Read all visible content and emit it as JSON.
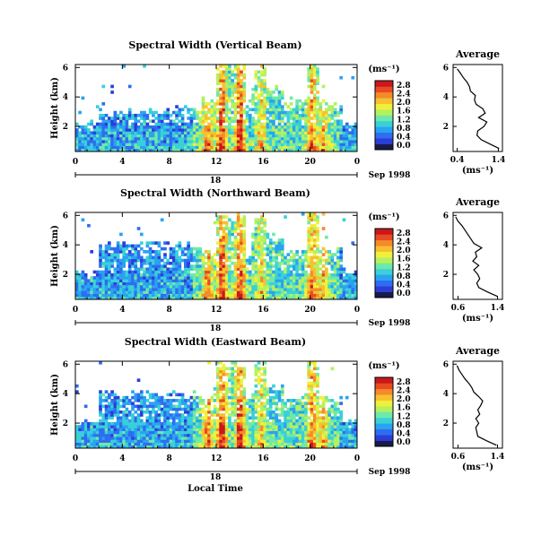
{
  "figure": {
    "x_axis_label": "Local Time",
    "date_label": "Sep 1998",
    "average_title": "Average",
    "colorbar_units": "(ms⁻¹)",
    "average_xlabel": "(ms⁻¹)",
    "height_label": "Height (km)"
  },
  "chart_data": [
    {
      "type": "heatmap",
      "title": "Spectral Width (Vertical Beam)",
      "xlabel": "Local Time",
      "ylabel": "Height (km)",
      "x_ticks": [
        "0",
        "4",
        "8",
        "12",
        "16",
        "20",
        "0"
      ],
      "x_sublabel": "18",
      "date_label": "Sep 1998",
      "xlim_hours": [
        0,
        24
      ],
      "ylim_km": [
        0.3,
        6.2
      ],
      "y_ticks": [
        "2",
        "4",
        "6"
      ],
      "colorbar": {
        "units": "(ms⁻¹)",
        "ticks": [
          "0.0",
          "0.4",
          "0.8",
          "1.2",
          "1.6",
          "2.0",
          "2.4",
          "2.8"
        ],
        "range": [
          0,
          3.0
        ]
      },
      "colormap": [
        "#1a1a4a",
        "#2b3dd9",
        "#2f6df0",
        "#2aa3f0",
        "#39d0d8",
        "#6fe9a8",
        "#b5f060",
        "#f0f03a",
        "#f7c030",
        "#f58a2a",
        "#e84a22",
        "#c8181c"
      ],
      "average_profile": {
        "title": "Average",
        "xlabel": "(ms⁻¹)",
        "x_ticks": [
          "0.4",
          "1.4"
        ],
        "xlim": [
          0.3,
          1.5
        ],
        "y_ticks": [
          "2",
          "4",
          "6"
        ],
        "height_km": [
          0.5,
          0.8,
          1.1,
          1.4,
          1.7,
          2.0,
          2.3,
          2.6,
          2.9,
          3.2,
          3.5,
          3.8,
          4.1,
          4.4,
          4.7,
          5.0,
          5.3,
          5.6,
          5.9
        ],
        "width_ms": [
          1.42,
          1.2,
          0.98,
          0.88,
          0.9,
          1.05,
          1.12,
          0.92,
          1.08,
          1.02,
          0.86,
          0.82,
          0.84,
          0.72,
          0.7,
          0.64,
          0.55,
          0.48,
          0.4
        ]
      }
    },
    {
      "type": "heatmap",
      "title": "Spectral Width (Northward Beam)",
      "xlabel": "Local Time",
      "ylabel": "Height (km)",
      "x_ticks": [
        "0",
        "4",
        "8",
        "12",
        "16",
        "20",
        "0"
      ],
      "x_sublabel": "18",
      "date_label": "Sep 1998",
      "xlim_hours": [
        0,
        24
      ],
      "ylim_km": [
        0.3,
        6.2
      ],
      "y_ticks": [
        "2",
        "4",
        "6"
      ],
      "colorbar": {
        "units": "(ms⁻¹)",
        "ticks": [
          "0.0",
          "0.4",
          "0.8",
          "1.2",
          "1.6",
          "2.0",
          "2.4",
          "2.8"
        ],
        "range": [
          0,
          3.0
        ]
      },
      "colormap": [
        "#1a1a4a",
        "#2b3dd9",
        "#2f6df0",
        "#2aa3f0",
        "#39d0d8",
        "#6fe9a8",
        "#b5f060",
        "#f0f03a",
        "#f7c030",
        "#f58a2a",
        "#e84a22",
        "#c8181c"
      ],
      "average_profile": {
        "title": "Average",
        "xlabel": "(ms⁻¹)",
        "x_ticks": [
          "0.6",
          "1.4"
        ],
        "xlim": [
          0.5,
          1.5
        ],
        "y_ticks": [
          "2",
          "4",
          "6"
        ],
        "height_km": [
          0.5,
          0.8,
          1.1,
          1.4,
          1.7,
          2.0,
          2.3,
          2.6,
          2.9,
          3.2,
          3.5,
          3.8,
          4.1,
          4.4,
          4.7,
          5.0,
          5.3,
          5.6,
          5.9
        ],
        "width_ms": [
          1.4,
          1.2,
          1.02,
          0.98,
          1.04,
          1.0,
          0.92,
          1.02,
          0.9,
          0.98,
          0.95,
          1.08,
          0.92,
          0.86,
          0.8,
          0.74,
          0.68,
          0.6,
          0.55
        ]
      }
    },
    {
      "type": "heatmap",
      "title": "Spectral Width (Eastward Beam)",
      "xlabel": "Local Time",
      "ylabel": "Height (km)",
      "x_ticks": [
        "0",
        "4",
        "8",
        "12",
        "16",
        "20",
        "0"
      ],
      "x_sublabel": "18",
      "date_label": "Sep 1998",
      "xlim_hours": [
        0,
        24
      ],
      "ylim_km": [
        0.3,
        6.2
      ],
      "y_ticks": [
        "2",
        "4",
        "6"
      ],
      "colorbar": {
        "units": "(ms⁻¹)",
        "ticks": [
          "0.0",
          "0.4",
          "0.8",
          "1.2",
          "1.6",
          "2.0",
          "2.4",
          "2.8"
        ],
        "range": [
          0,
          3.0
        ]
      },
      "colormap": [
        "#1a1a4a",
        "#2b3dd9",
        "#2f6df0",
        "#2aa3f0",
        "#39d0d8",
        "#6fe9a8",
        "#b5f060",
        "#f0f03a",
        "#f7c030",
        "#f58a2a",
        "#e84a22",
        "#c8181c"
      ],
      "average_profile": {
        "title": "Average",
        "xlabel": "(ms⁻¹)",
        "x_ticks": [
          "0.6",
          "1.4"
        ],
        "xlim": [
          0.5,
          1.5
        ],
        "y_ticks": [
          "2",
          "4",
          "6"
        ],
        "height_km": [
          0.5,
          0.8,
          1.1,
          1.4,
          1.7,
          2.0,
          2.3,
          2.6,
          2.9,
          3.2,
          3.5,
          3.8,
          4.1,
          4.4,
          4.7,
          5.0,
          5.3,
          5.6,
          5.9
        ],
        "width_ms": [
          1.38,
          1.18,
          1.0,
          0.98,
          0.96,
          1.02,
          0.96,
          1.04,
          1.0,
          1.06,
          1.1,
          1.02,
          0.92,
          0.88,
          0.82,
          0.74,
          0.68,
          0.62,
          0.58
        ]
      }
    }
  ]
}
